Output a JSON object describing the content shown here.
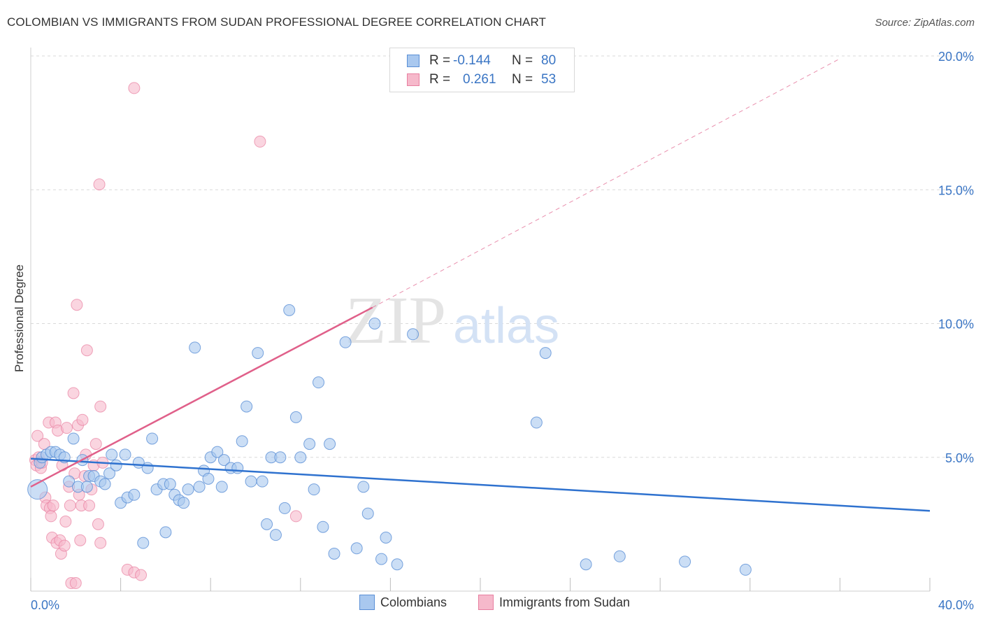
{
  "title": "COLOMBIAN VS IMMIGRANTS FROM SUDAN PROFESSIONAL DEGREE CORRELATION CHART",
  "source": "Source: ZipAtlas.com",
  "watermark": {
    "zip": "ZIP",
    "atlas": "atlas"
  },
  "legend": {
    "rows": [
      {
        "r_label": "R =",
        "r_value": "-0.144",
        "n_label": "N =",
        "n_value": "80"
      },
      {
        "r_label": "R =",
        "r_value": "0.261",
        "n_label": "N =",
        "n_value": "53"
      }
    ]
  },
  "bottom_legend": [
    "Colombians",
    "Immigrants from Sudan"
  ],
  "colors": {
    "blue_fill": "#a9c8ef",
    "blue_stroke": "#5a8fd6",
    "blue_line": "#2f72cf",
    "pink_fill": "#f6b9cb",
    "pink_stroke": "#e87fa0",
    "pink_line": "#e0608a",
    "grid": "#d9d9d9",
    "tick_text": "#3a75c4"
  },
  "chart_data": {
    "type": "scatter",
    "title": "COLOMBIAN VS IMMIGRANTS FROM SUDAN PROFESSIONAL DEGREE CORRELATION CHART",
    "xlabel": "",
    "ylabel": "Professional Degree",
    "xlim": [
      0,
      40
    ],
    "ylim": [
      0,
      20.5
    ],
    "x_tick_labels": [
      "0.0%",
      "40.0%"
    ],
    "y_ticks": [
      5,
      10,
      15,
      20
    ],
    "y_tick_labels": [
      "5.0%",
      "10.0%",
      "15.0%",
      "20.0%"
    ],
    "grid": true,
    "legend_position": "top-center",
    "series": [
      {
        "name": "Colombians",
        "r": -0.144,
        "n": 80,
        "trend": {
          "x": [
            0,
            40
          ],
          "y": [
            4.95,
            3.0
          ]
        },
        "points": [
          [
            0.3,
            3.8
          ],
          [
            0.4,
            4.8
          ],
          [
            0.5,
            5.0
          ],
          [
            0.7,
            5.1
          ],
          [
            0.9,
            5.2
          ],
          [
            1.1,
            5.2
          ],
          [
            1.3,
            5.1
          ],
          [
            1.5,
            5.0
          ],
          [
            1.7,
            4.1
          ],
          [
            1.9,
            5.7
          ],
          [
            2.1,
            3.9
          ],
          [
            2.3,
            4.9
          ],
          [
            2.5,
            3.9
          ],
          [
            2.6,
            4.3
          ],
          [
            2.8,
            4.3
          ],
          [
            3.1,
            4.1
          ],
          [
            3.3,
            4.0
          ],
          [
            3.5,
            4.4
          ],
          [
            3.6,
            5.1
          ],
          [
            3.8,
            4.7
          ],
          [
            4.0,
            3.3
          ],
          [
            4.2,
            5.1
          ],
          [
            4.3,
            3.5
          ],
          [
            4.6,
            3.6
          ],
          [
            4.8,
            4.8
          ],
          [
            5.0,
            1.8
          ],
          [
            5.2,
            4.6
          ],
          [
            5.4,
            5.7
          ],
          [
            5.6,
            3.8
          ],
          [
            5.9,
            4.0
          ],
          [
            6.0,
            2.2
          ],
          [
            6.2,
            4.0
          ],
          [
            6.4,
            3.6
          ],
          [
            6.6,
            3.4
          ],
          [
            6.8,
            3.3
          ],
          [
            7.0,
            3.8
          ],
          [
            7.3,
            9.1
          ],
          [
            7.5,
            3.9
          ],
          [
            7.7,
            4.5
          ],
          [
            7.9,
            4.2
          ],
          [
            8.0,
            5.0
          ],
          [
            8.3,
            5.2
          ],
          [
            8.5,
            3.9
          ],
          [
            8.6,
            4.9
          ],
          [
            8.9,
            4.6
          ],
          [
            9.2,
            4.6
          ],
          [
            9.4,
            5.6
          ],
          [
            9.6,
            6.9
          ],
          [
            9.8,
            4.1
          ],
          [
            10.1,
            8.9
          ],
          [
            10.3,
            4.1
          ],
          [
            10.5,
            2.5
          ],
          [
            10.7,
            5.0
          ],
          [
            10.9,
            2.1
          ],
          [
            11.1,
            5.0
          ],
          [
            11.3,
            3.1
          ],
          [
            11.5,
            10.5
          ],
          [
            11.8,
            6.5
          ],
          [
            12.0,
            5.0
          ],
          [
            12.4,
            5.5
          ],
          [
            12.6,
            3.8
          ],
          [
            12.8,
            7.8
          ],
          [
            13.0,
            2.4
          ],
          [
            13.3,
            5.5
          ],
          [
            13.5,
            1.4
          ],
          [
            14.0,
            9.3
          ],
          [
            14.5,
            1.6
          ],
          [
            14.8,
            3.9
          ],
          [
            15.0,
            2.9
          ],
          [
            15.3,
            10.0
          ],
          [
            15.6,
            1.2
          ],
          [
            15.8,
            2.0
          ],
          [
            16.3,
            1.0
          ],
          [
            17.0,
            9.6
          ],
          [
            22.5,
            6.3
          ],
          [
            22.9,
            8.9
          ],
          [
            24.7,
            1.0
          ],
          [
            26.2,
            1.3
          ],
          [
            29.1,
            1.1
          ],
          [
            31.8,
            0.8
          ]
        ]
      },
      {
        "name": "Immigrants from Sudan",
        "r": 0.261,
        "n": 53,
        "trend": {
          "x": [
            0,
            15.2
          ],
          "y": [
            3.9,
            10.6
          ]
        },
        "trend_extension": {
          "x": [
            15.2,
            36.0
          ],
          "y": [
            10.6,
            19.9
          ]
        },
        "points": [
          [
            0.2,
            4.9
          ],
          [
            0.25,
            4.7
          ],
          [
            0.3,
            5.8
          ],
          [
            0.35,
            5.0
          ],
          [
            0.45,
            4.6
          ],
          [
            0.5,
            4.8
          ],
          [
            0.6,
            5.5
          ],
          [
            0.65,
            3.5
          ],
          [
            0.7,
            3.2
          ],
          [
            0.8,
            6.3
          ],
          [
            0.85,
            3.1
          ],
          [
            0.9,
            2.8
          ],
          [
            0.95,
            2.0
          ],
          [
            1.0,
            3.2
          ],
          [
            1.1,
            6.3
          ],
          [
            1.15,
            1.8
          ],
          [
            1.2,
            6.0
          ],
          [
            1.3,
            1.9
          ],
          [
            1.35,
            1.4
          ],
          [
            1.4,
            4.7
          ],
          [
            1.5,
            1.7
          ],
          [
            1.55,
            2.6
          ],
          [
            1.6,
            6.1
          ],
          [
            1.7,
            3.9
          ],
          [
            1.75,
            3.2
          ],
          [
            1.8,
            0.3
          ],
          [
            1.9,
            7.4
          ],
          [
            1.95,
            4.4
          ],
          [
            2.0,
            0.3
          ],
          [
            2.05,
            10.7
          ],
          [
            2.1,
            6.2
          ],
          [
            2.15,
            3.6
          ],
          [
            2.2,
            1.9
          ],
          [
            2.25,
            3.2
          ],
          [
            2.3,
            6.4
          ],
          [
            2.4,
            4.3
          ],
          [
            2.45,
            5.1
          ],
          [
            2.5,
            9.0
          ],
          [
            2.6,
            3.2
          ],
          [
            2.7,
            3.8
          ],
          [
            2.8,
            4.7
          ],
          [
            2.9,
            5.5
          ],
          [
            3.0,
            2.5
          ],
          [
            3.1,
            1.8
          ],
          [
            3.05,
            15.2
          ],
          [
            3.1,
            6.9
          ],
          [
            3.2,
            4.8
          ],
          [
            4.3,
            0.8
          ],
          [
            4.6,
            0.7
          ],
          [
            4.9,
            0.6
          ],
          [
            4.6,
            18.8
          ],
          [
            10.2,
            16.8
          ],
          [
            11.8,
            2.8
          ]
        ]
      }
    ]
  }
}
